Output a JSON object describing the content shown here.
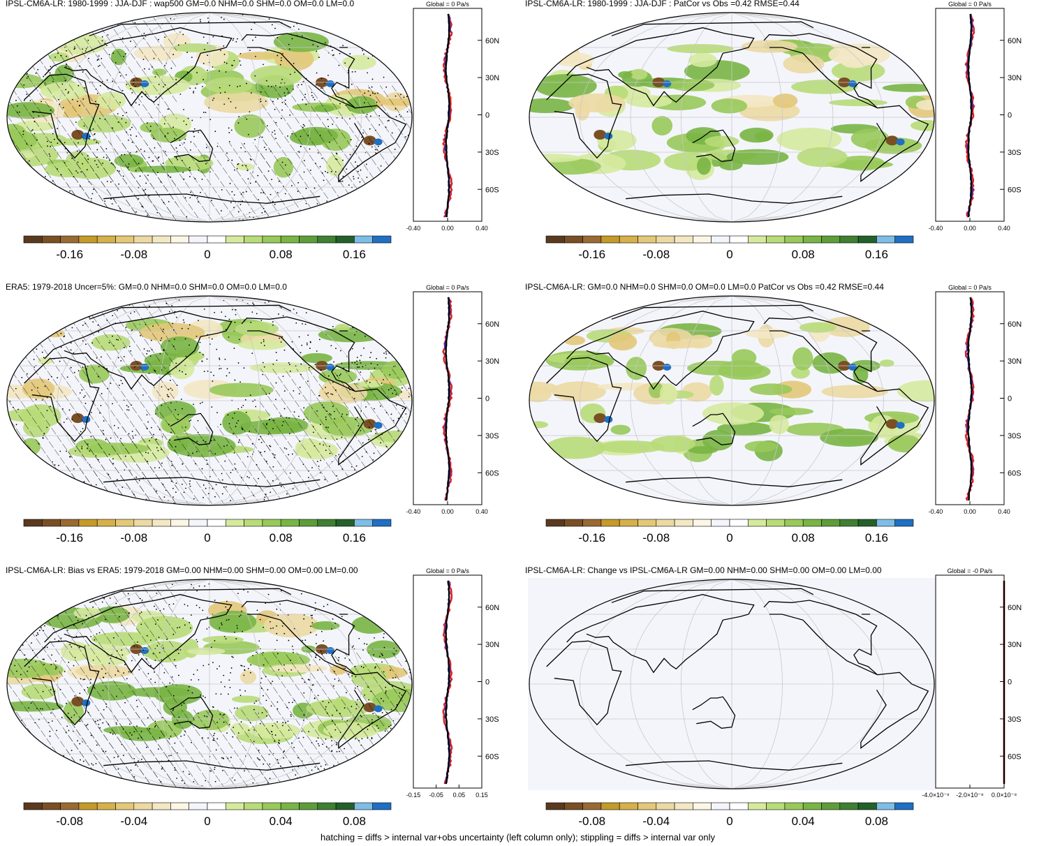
{
  "panels": [
    {
      "title": "IPSL-CM6A-LR: 1980-1999 : JJA-DJF : wap500 GM=0.0 NHM=0.0 SHM=0.0 OM=0.0 LM=0.0",
      "zonal_header": "Global = 0 Pa/s",
      "zonal_ticks": [
        "-0.40",
        "0.00",
        "0.40"
      ],
      "cbar_labels": [
        "-0.16",
        "-0.08",
        "0",
        "0.08",
        "0.16"
      ],
      "hatched": true,
      "blank": false
    },
    {
      "title": "IPSL-CM6A-LR: 1980-1999 : JJA-DJF : PatCor vs Obs =0.42 RMSE=0.44",
      "zonal_header": "Global = 0 Pa/s",
      "zonal_ticks": [
        "-0.40",
        "0.00",
        "0.40"
      ],
      "cbar_labels": [
        "-0.16",
        "-0.08",
        "0",
        "0.08",
        "0.16"
      ],
      "hatched": false,
      "blank": false
    },
    {
      "title": "ERA5: 1979-2018 Uncer=5%: GM=0.0 NHM=0.0 SHM=0.0 OM=0.0 LM=0.0",
      "zonal_header": "Global = 0 Pa/s",
      "zonal_ticks": [
        "-0.40",
        "0.00",
        "0.40"
      ],
      "cbar_labels": [
        "-0.16",
        "-0.08",
        "0",
        "0.08",
        "0.16"
      ],
      "hatched": true,
      "blank": false
    },
    {
      "title": "IPSL-CM6A-LR: GM=0.0 NHM=0.0 SHM=0.0 OM=0.0 LM=0.0 PatCor vs Obs =0.42 RMSE=0.44",
      "zonal_header": "Global = 0 Pa/s",
      "zonal_ticks": [
        "-0.40",
        "0.00",
        "0.40"
      ],
      "cbar_labels": [
        "-0.16",
        "-0.08",
        "0",
        "0.08",
        "0.16"
      ],
      "hatched": false,
      "blank": false
    },
    {
      "title": "IPSL-CM6A-LR: Bias vs ERA5: 1979-2018 GM=0.00 NHM=0.00 SHM=0.00 OM=0.00 LM=0.00",
      "zonal_header": "Global = 0 Pa/s",
      "zonal_ticks": [
        "-0.15",
        "-0.05",
        "0.05",
        "0.15"
      ],
      "cbar_labels": [
        "-0.08",
        "-0.04",
        "0",
        "0.04",
        "0.08"
      ],
      "hatched": true,
      "blank": false
    },
    {
      "title": "IPSL-CM6A-LR: Change vs IPSL-CM6A-LR GM=0.00 NHM=0.00 SHM=0.00 OM=0.00 LM=0.00",
      "zonal_header": "Global = -0 Pa/s",
      "zonal_ticks": [
        "-4.0×10⁻⁸",
        "-2.0×10⁻⁸",
        "0.0×10⁻⁸"
      ],
      "cbar_labels": [
        "-0.08",
        "-0.04",
        "0",
        "0.04",
        "0.08"
      ],
      "hatched": false,
      "blank": true
    }
  ],
  "lat_labels": [
    "60N",
    "30N",
    "0",
    "30S",
    "60S"
  ],
  "colors": {
    "palette": [
      "#5a3a1e",
      "#7a4f26",
      "#9a6a33",
      "#c49a2a",
      "#d6b04a",
      "#e3c879",
      "#ecd9a3",
      "#f3e8c4",
      "#fbf6e6",
      "#f4f5fb",
      "#ffffff",
      "#d6ea9e",
      "#b8dc78",
      "#98c95a",
      "#79b545",
      "#5e9e3a",
      "#3f8032",
      "#23602a",
      "#7dbde6",
      "#1f6fc2"
    ],
    "ocean": "#f4f5fb",
    "red_line": "#e02020",
    "blue_line": "#1030c0"
  },
  "footer": "hatching = diffs > internal var+obs uncertainty (left column only); stippling = diffs > internal var only"
}
